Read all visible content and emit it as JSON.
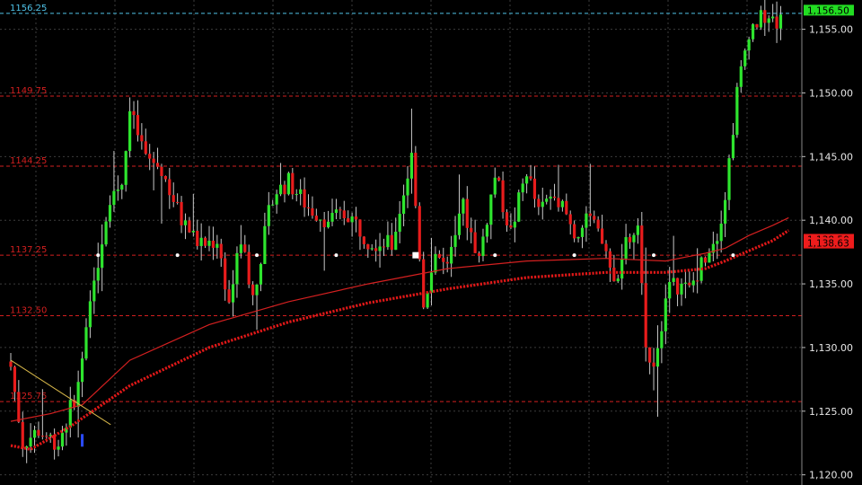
{
  "chart_data": {
    "type": "candlestick",
    "ylim": [
      1119.2,
      1157.3
    ],
    "y_ticks": [
      {
        "value": 1120.0,
        "label": "1,120.00"
      },
      {
        "value": 1125.0,
        "label": "1,125.00"
      },
      {
        "value": 1130.0,
        "label": "1,130.00"
      },
      {
        "value": 1135.0,
        "label": "1,135.00"
      },
      {
        "value": 1140.0,
        "label": "1,140.00"
      },
      {
        "value": 1145.0,
        "label": "1,145.00"
      },
      {
        "value": 1150.0,
        "label": "1,150.00"
      },
      {
        "value": 1155.0,
        "label": "1,155.00"
      }
    ],
    "level_lines": [
      {
        "value": 1156.25,
        "label": "1156.25",
        "color": "#4fc3e8"
      },
      {
        "value": 1149.75,
        "label": "1149.75",
        "color": "#d21f1f"
      },
      {
        "value": 1144.25,
        "label": "1144.25",
        "color": "#d21f1f"
      },
      {
        "value": 1137.25,
        "label": "1137.25",
        "color": "#d21f1f"
      },
      {
        "value": 1132.5,
        "label": "1132.50",
        "color": "#d21f1f"
      },
      {
        "value": 1125.75,
        "label": "1125.75",
        "color": "#d21f1f"
      }
    ],
    "price_tags": [
      {
        "value": 1156.5,
        "label": "1,156.50",
        "bg": "#22dd22",
        "fg": "#000000"
      },
      {
        "value": 1138.5,
        "label": "1,138.50",
        "bg": "#ee1c1c",
        "fg": "#000000"
      },
      {
        "value": 1138.63,
        "label": "1,138.63",
        "bg": "#ee1c1c",
        "fg": "#000000"
      }
    ],
    "anchors": [
      {
        "i": 0,
        "p": 1128.5
      },
      {
        "i": 3,
        "p": 1122.5
      },
      {
        "i": 7,
        "p": 1123.5
      },
      {
        "i": 12,
        "p": 1122.5
      },
      {
        "i": 17,
        "p": 1127.0
      },
      {
        "i": 22,
        "p": 1137.0
      },
      {
        "i": 25,
        "p": 1142.0
      },
      {
        "i": 28,
        "p": 1143.0
      },
      {
        "i": 30,
        "p": 1148.5
      },
      {
        "i": 34,
        "p": 1145.0
      },
      {
        "i": 38,
        "p": 1144.0
      },
      {
        "i": 43,
        "p": 1140.0
      },
      {
        "i": 48,
        "p": 1138.0
      },
      {
        "i": 52,
        "p": 1138.5
      },
      {
        "i": 55,
        "p": 1133.5
      },
      {
        "i": 58,
        "p": 1138.5
      },
      {
        "i": 61,
        "p": 1134.0
      },
      {
        "i": 66,
        "p": 1142.0
      },
      {
        "i": 70,
        "p": 1143.0
      },
      {
        "i": 75,
        "p": 1141.0
      },
      {
        "i": 80,
        "p": 1140.0
      },
      {
        "i": 85,
        "p": 1140.5
      },
      {
        "i": 90,
        "p": 1138.5
      },
      {
        "i": 96,
        "p": 1138.0
      },
      {
        "i": 101,
        "p": 1145.0
      },
      {
        "i": 104,
        "p": 1133.5
      },
      {
        "i": 107,
        "p": 1137.5
      },
      {
        "i": 110,
        "p": 1136.0
      },
      {
        "i": 114,
        "p": 1141.0
      },
      {
        "i": 118,
        "p": 1137.0
      },
      {
        "i": 122,
        "p": 1143.5
      },
      {
        "i": 126,
        "p": 1139.0
      },
      {
        "i": 130,
        "p": 1144.0
      },
      {
        "i": 133,
        "p": 1140.5
      },
      {
        "i": 137,
        "p": 1142.5
      },
      {
        "i": 142,
        "p": 1139.0
      },
      {
        "i": 146,
        "p": 1140.0
      },
      {
        "i": 150,
        "p": 1137.5
      },
      {
        "i": 152,
        "p": 1135.0
      },
      {
        "i": 155,
        "p": 1138.0
      },
      {
        "i": 158,
        "p": 1139.0
      },
      {
        "i": 160,
        "p": 1130.0
      },
      {
        "i": 162,
        "p": 1129.0
      },
      {
        "i": 166,
        "p": 1135.0
      },
      {
        "i": 171,
        "p": 1134.5
      },
      {
        "i": 176,
        "p": 1138.0
      },
      {
        "i": 178,
        "p": 1139.0
      },
      {
        "i": 180,
        "p": 1142.0
      },
      {
        "i": 183,
        "p": 1150.0
      },
      {
        "i": 186,
        "p": 1155.0
      },
      {
        "i": 190,
        "p": 1156.0
      },
      {
        "i": 193,
        "p": 1155.5
      },
      {
        "i": 196,
        "p": 1156.5
      }
    ],
    "ma_slow": [
      [
        0,
        1122.3
      ],
      [
        5,
        1122.0
      ],
      [
        15,
        1123.8
      ],
      [
        30,
        1127.0
      ],
      [
        50,
        1130.0
      ],
      [
        70,
        1132.0
      ],
      [
        90,
        1133.5
      ],
      [
        110,
        1134.6
      ],
      [
        130,
        1135.5
      ],
      [
        150,
        1135.9
      ],
      [
        165,
        1135.9
      ],
      [
        175,
        1136.2
      ],
      [
        180,
        1136.8
      ],
      [
        186,
        1137.6
      ],
      [
        192,
        1138.4
      ],
      [
        196,
        1139.2
      ]
    ],
    "ma_fast": [
      [
        0,
        1124.2
      ],
      [
        10,
        1124.8
      ],
      [
        18,
        1125.5
      ],
      [
        30,
        1129.0
      ],
      [
        50,
        1131.8
      ],
      [
        70,
        1133.6
      ],
      [
        90,
        1135.0
      ],
      [
        110,
        1136.2
      ],
      [
        130,
        1136.8
      ],
      [
        150,
        1137.0
      ],
      [
        165,
        1136.8
      ],
      [
        175,
        1137.4
      ],
      [
        180,
        1137.8
      ],
      [
        186,
        1138.8
      ],
      [
        192,
        1139.6
      ],
      [
        196,
        1140.2
      ]
    ],
    "markers": [
      {
        "i": 22,
        "p": 1137.25,
        "type": "dot"
      },
      {
        "i": 42,
        "p": 1137.25,
        "type": "dot"
      },
      {
        "i": 62,
        "p": 1137.25,
        "type": "dot"
      },
      {
        "i": 82,
        "p": 1137.25,
        "type": "dot"
      },
      {
        "i": 102,
        "p": 1137.25,
        "type": "square"
      },
      {
        "i": 122,
        "p": 1137.25,
        "type": "dot"
      },
      {
        "i": 142,
        "p": 1137.25,
        "type": "dot"
      },
      {
        "i": 162,
        "p": 1137.25,
        "type": "dot"
      },
      {
        "i": 182,
        "p": 1137.25,
        "type": "dot"
      }
    ],
    "trendline": {
      "from": [
        0,
        1129.0
      ],
      "to": [
        22,
        1123.8
      ]
    },
    "seed": 7
  }
}
